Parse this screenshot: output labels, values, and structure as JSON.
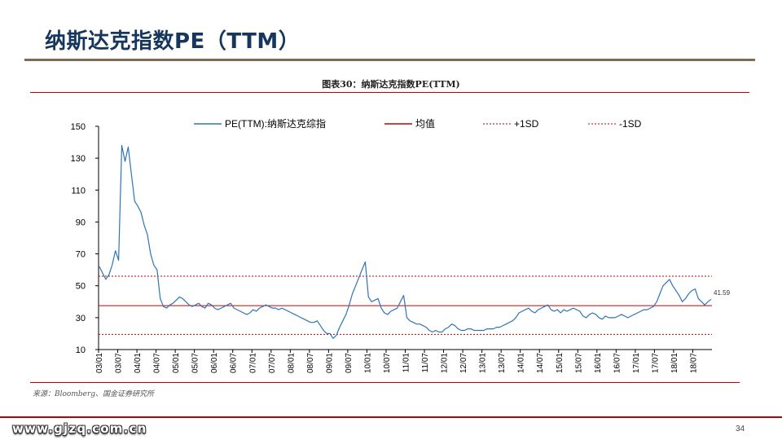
{
  "page": {
    "title": "纳斯达克指数PE（TTM）",
    "figure_caption": "图表30：纳斯达克指数PE(TTM)",
    "source": "来源：Bloomberg、国金证券研究所",
    "watermark": "www.gjzq.com.cn",
    "page_number": "34"
  },
  "colors": {
    "title": "#17365D",
    "series_line": "#2E75B6",
    "mean_line": "#C00000",
    "sd_lines": "#C00000",
    "rule_brown": "#7F6A52",
    "rule_red": "#C00000"
  },
  "chart_data": {
    "type": "line",
    "title": "",
    "xlabel": "",
    "ylabel": "",
    "ylim": [
      10,
      150
    ],
    "yticks": [
      10,
      30,
      50,
      70,
      90,
      110,
      130,
      150
    ],
    "x_tick_labels": [
      "03/01",
      "03/07",
      "04/01",
      "04/07",
      "05/01",
      "05/07",
      "06/01",
      "06/07",
      "07/01",
      "07/07",
      "08/01",
      "08/07",
      "09/01",
      "09/07",
      "10/01",
      "10/07",
      "11/01",
      "11/07",
      "12/01",
      "12/07",
      "13/01",
      "13/07",
      "14/01",
      "14/07",
      "15/01",
      "15/07",
      "16/01",
      "16/07",
      "17/01",
      "17/07",
      "18/01",
      "18/07"
    ],
    "legend_position": "top",
    "last_value_label": "41.59",
    "series": [
      {
        "name": "PE(TTM):纳斯达克综指",
        "style": "solid",
        "color": "#2E75B6",
        "points": [
          [
            "03/01",
            62
          ],
          [
            "03/02",
            58
          ],
          [
            "03/03",
            54
          ],
          [
            "03/04",
            57
          ],
          [
            "03/05",
            63
          ],
          [
            "03/06",
            72
          ],
          [
            "03/07",
            66
          ],
          [
            "03/08",
            138
          ],
          [
            "03/09",
            128
          ],
          [
            "03/10",
            137
          ],
          [
            "03/11",
            120
          ],
          [
            "03/12",
            103
          ],
          [
            "04/01",
            100
          ],
          [
            "04/02",
            96
          ],
          [
            "04/03",
            88
          ],
          [
            "04/04",
            82
          ],
          [
            "04/05",
            70
          ],
          [
            "04/06",
            63
          ],
          [
            "04/07",
            60
          ],
          [
            "04/08",
            42
          ],
          [
            "04/09",
            37
          ],
          [
            "04/10",
            36
          ],
          [
            "04/11",
            38
          ],
          [
            "04/12",
            39
          ],
          [
            "05/01",
            41
          ],
          [
            "05/02",
            43
          ],
          [
            "05/03",
            42
          ],
          [
            "05/04",
            40
          ],
          [
            "05/05",
            38
          ],
          [
            "05/06",
            37
          ],
          [
            "05/07",
            38
          ],
          [
            "05/08",
            39
          ],
          [
            "05/09",
            37
          ],
          [
            "05/10",
            36
          ],
          [
            "05/11",
            39
          ],
          [
            "05/12",
            38
          ],
          [
            "06/01",
            36
          ],
          [
            "06/02",
            35
          ],
          [
            "06/03",
            36
          ],
          [
            "06/04",
            37
          ],
          [
            "06/05",
            38
          ],
          [
            "06/06",
            39
          ],
          [
            "06/07",
            36
          ],
          [
            "06/08",
            35
          ],
          [
            "06/09",
            34
          ],
          [
            "06/10",
            33
          ],
          [
            "06/11",
            32
          ],
          [
            "06/12",
            33
          ],
          [
            "07/01",
            35
          ],
          [
            "07/02",
            34
          ],
          [
            "07/03",
            36
          ],
          [
            "07/04",
            37
          ],
          [
            "07/05",
            38
          ],
          [
            "07/06",
            37
          ],
          [
            "07/07",
            36
          ],
          [
            "07/08",
            36
          ],
          [
            "07/09",
            35
          ],
          [
            "07/10",
            36
          ],
          [
            "07/11",
            35
          ],
          [
            "07/12",
            34
          ],
          [
            "08/01",
            33
          ],
          [
            "08/02",
            32
          ],
          [
            "08/03",
            31
          ],
          [
            "08/04",
            30
          ],
          [
            "08/05",
            29
          ],
          [
            "08/06",
            28
          ],
          [
            "08/07",
            27
          ],
          [
            "08/08",
            27
          ],
          [
            "08/09",
            28
          ],
          [
            "08/10",
            25
          ],
          [
            "08/11",
            22
          ],
          [
            "08/12",
            20
          ],
          [
            "09/01",
            20
          ],
          [
            "09/02",
            17
          ],
          [
            "09/03",
            19
          ],
          [
            "09/04",
            24
          ],
          [
            "09/05",
            28
          ],
          [
            "09/06",
            32
          ],
          [
            "09/07",
            38
          ],
          [
            "09/08",
            45
          ],
          [
            "09/09",
            50
          ],
          [
            "09/10",
            55
          ],
          [
            "09/11",
            60
          ],
          [
            "09/12",
            65
          ],
          [
            "10/01",
            43
          ],
          [
            "10/02",
            40
          ],
          [
            "10/03",
            41
          ],
          [
            "10/04",
            42
          ],
          [
            "10/05",
            36
          ],
          [
            "10/06",
            33
          ],
          [
            "10/07",
            32
          ],
          [
            "10/08",
            34
          ],
          [
            "10/09",
            35
          ],
          [
            "10/10",
            36
          ],
          [
            "10/11",
            40
          ],
          [
            "10/12",
            44
          ],
          [
            "11/01",
            30
          ],
          [
            "11/02",
            28
          ],
          [
            "11/03",
            27
          ],
          [
            "11/04",
            26
          ],
          [
            "11/05",
            26
          ],
          [
            "11/06",
            25
          ],
          [
            "11/07",
            24
          ],
          [
            "11/08",
            22
          ],
          [
            "11/09",
            21
          ],
          [
            "11/10",
            22
          ],
          [
            "11/11",
            21
          ],
          [
            "11/12",
            21
          ],
          [
            "12/01",
            23
          ],
          [
            "12/02",
            24
          ],
          [
            "12/03",
            26
          ],
          [
            "12/04",
            25
          ],
          [
            "12/05",
            23
          ],
          [
            "12/06",
            22
          ],
          [
            "12/07",
            22
          ],
          [
            "12/08",
            23
          ],
          [
            "12/09",
            23
          ],
          [
            "12/10",
            22
          ],
          [
            "12/11",
            22
          ],
          [
            "12/12",
            22
          ],
          [
            "13/01",
            22
          ],
          [
            "13/02",
            23
          ],
          [
            "13/03",
            23
          ],
          [
            "13/04",
            23
          ],
          [
            "13/05",
            24
          ],
          [
            "13/06",
            24
          ],
          [
            "13/07",
            25
          ],
          [
            "13/08",
            26
          ],
          [
            "13/09",
            27
          ],
          [
            "13/10",
            28
          ],
          [
            "13/11",
            30
          ],
          [
            "13/12",
            33
          ],
          [
            "14/01",
            34
          ],
          [
            "14/02",
            35
          ],
          [
            "14/03",
            36
          ],
          [
            "14/04",
            34
          ],
          [
            "14/05",
            33
          ],
          [
            "14/06",
            35
          ],
          [
            "14/07",
            36
          ],
          [
            "14/08",
            37
          ],
          [
            "14/09",
            38
          ],
          [
            "14/10",
            35
          ],
          [
            "14/11",
            34
          ],
          [
            "14/12",
            35
          ],
          [
            "15/01",
            33
          ],
          [
            "15/02",
            35
          ],
          [
            "15/03",
            34
          ],
          [
            "15/04",
            35
          ],
          [
            "15/05",
            36
          ],
          [
            "15/06",
            35
          ],
          [
            "15/07",
            34
          ],
          [
            "15/08",
            31
          ],
          [
            "15/09",
            30
          ],
          [
            "15/10",
            32
          ],
          [
            "15/11",
            33
          ],
          [
            "15/12",
            32
          ],
          [
            "16/01",
            30
          ],
          [
            "16/02",
            29
          ],
          [
            "16/03",
            31
          ],
          [
            "16/04",
            30
          ],
          [
            "16/05",
            30
          ],
          [
            "16/06",
            30
          ],
          [
            "16/07",
            31
          ],
          [
            "16/08",
            32
          ],
          [
            "16/09",
            31
          ],
          [
            "16/10",
            30
          ],
          [
            "16/11",
            31
          ],
          [
            "16/12",
            32
          ],
          [
            "17/01",
            33
          ],
          [
            "17/02",
            34
          ],
          [
            "17/03",
            35
          ],
          [
            "17/04",
            35
          ],
          [
            "17/05",
            36
          ],
          [
            "17/06",
            37
          ],
          [
            "17/07",
            40
          ],
          [
            "17/08",
            45
          ],
          [
            "17/09",
            50
          ],
          [
            "17/10",
            52
          ],
          [
            "17/11",
            54
          ],
          [
            "17/12",
            50
          ],
          [
            "18/01",
            47
          ],
          [
            "18/02",
            44
          ],
          [
            "18/03",
            40
          ],
          [
            "18/04",
            42
          ],
          [
            "18/05",
            45
          ],
          [
            "18/06",
            47
          ],
          [
            "18/07",
            48
          ],
          [
            "18/08",
            42
          ],
          [
            "18/09",
            40
          ],
          [
            "18/10",
            38
          ],
          [
            "18/11",
            40
          ],
          [
            "18/12",
            41.59
          ]
        ]
      },
      {
        "name": "均值",
        "style": "solid",
        "color": "#C00000",
        "value": 37.5
      },
      {
        "name": "+1SD",
        "style": "dotted",
        "color": "#C00000",
        "value": 56
      },
      {
        "name": "-1SD",
        "style": "dotted",
        "color": "#C00000",
        "value": 19.5
      }
    ]
  }
}
